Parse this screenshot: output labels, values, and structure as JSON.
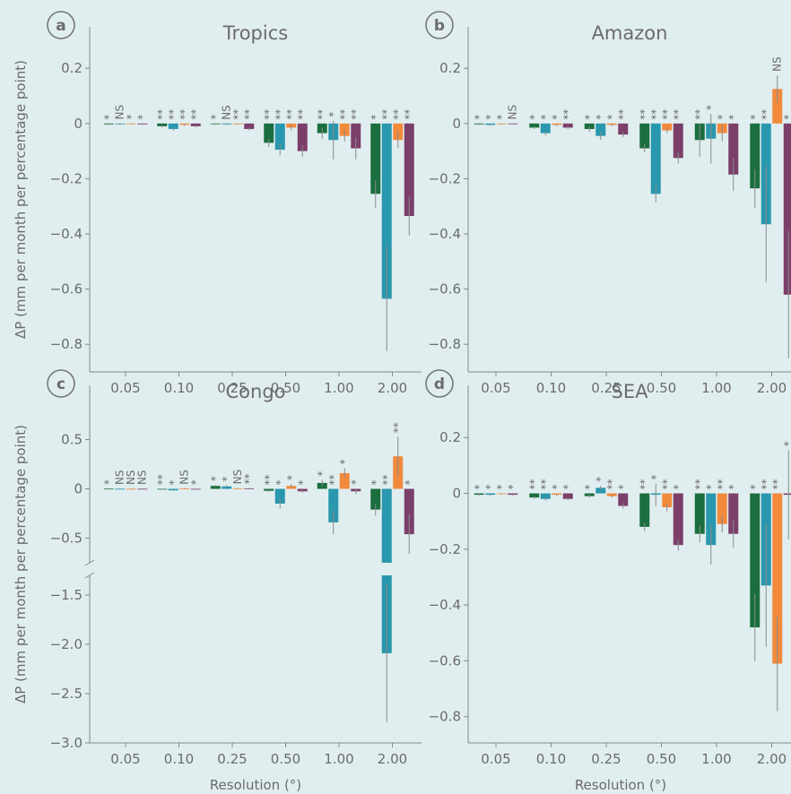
{
  "chart_data": [
    {
      "type": "bar",
      "panel_label": "a",
      "title": "Tropics",
      "ylabel": "ΔP (mm per month per percentage point)",
      "categories": [
        "0.05",
        "0.10",
        "0.25",
        "0.50",
        "1.00",
        "2.00"
      ],
      "ylim": [
        -0.9,
        0.35
      ],
      "yticks": [
        {
          "value": -0.8,
          "label": "−0.8"
        },
        {
          "value": -0.6,
          "label": "−0.6"
        },
        {
          "value": -0.4,
          "label": "−0.4"
        },
        {
          "value": -0.2,
          "label": "−0.2"
        },
        0,
        0.2
      ],
      "series": [
        {
          "color": "#1b6e3e",
          "values": [
            -0.003,
            -0.01,
            -0.002,
            -0.07,
            -0.035,
            -0.255
          ],
          "errors": [
            0.003,
            0.005,
            0.003,
            0.015,
            0.02,
            0.05
          ],
          "significance": [
            "*",
            "**",
            "*",
            "**",
            "**",
            "*"
          ]
        },
        {
          "color": "#2997ad",
          "values": [
            -0.002,
            -0.02,
            -0.003,
            -0.095,
            -0.06,
            -0.635
          ],
          "errors": [
            0.003,
            0.006,
            0.003,
            0.02,
            0.07,
            0.19
          ],
          "significance": [
            "NS",
            "**",
            "NS",
            "**",
            "*",
            "**"
          ]
        },
        {
          "color": "#f28a3c",
          "values": [
            -0.001,
            -0.005,
            -0.002,
            -0.015,
            -0.045,
            -0.06
          ],
          "errors": [
            0.002,
            0.004,
            0.002,
            0.01,
            0.02,
            0.03
          ],
          "significance": [
            "*",
            "**",
            "**",
            "**",
            "**",
            "**"
          ]
        },
        {
          "color": "#7b3f6a",
          "values": [
            -0.003,
            -0.01,
            -0.02,
            -0.1,
            -0.09,
            -0.335
          ],
          "errors": [
            0.003,
            0.005,
            0.005,
            0.02,
            0.04,
            0.07
          ],
          "significance": [
            "*",
            "**",
            "**",
            "**",
            "**",
            "**"
          ]
        }
      ]
    },
    {
      "type": "bar",
      "panel_label": "b",
      "title": "Amazon",
      "categories": [
        "0.05",
        "0.10",
        "0.25",
        "0.50",
        "1.00",
        "2.00"
      ],
      "ylim": [
        -0.9,
        0.35
      ],
      "yticks": [
        {
          "value": -0.8,
          "label": "−0.8"
        },
        {
          "value": -0.6,
          "label": "−0.6"
        },
        {
          "value": -0.4,
          "label": "−0.4"
        },
        {
          "value": -0.2,
          "label": "−0.2"
        },
        0,
        0.2
      ],
      "series": [
        {
          "color": "#1b6e3e",
          "values": [
            -0.003,
            -0.015,
            -0.02,
            -0.09,
            -0.06,
            -0.235
          ],
          "errors": [
            0.003,
            0.005,
            0.01,
            0.015,
            0.06,
            0.07
          ],
          "significance": [
            "*",
            "*",
            "*",
            "**",
            "**",
            "*"
          ]
        },
        {
          "color": "#2997ad",
          "values": [
            -0.005,
            -0.035,
            -0.045,
            -0.255,
            -0.055,
            -0.365
          ],
          "errors": [
            0.003,
            0.008,
            0.015,
            0.03,
            0.09,
            0.21
          ],
          "significance": [
            "*",
            "*",
            "*",
            "**",
            "*",
            "**"
          ]
        },
        {
          "color": "#f28a3c",
          "values": [
            -0.002,
            -0.005,
            -0.005,
            -0.025,
            -0.035,
            0.125
          ],
          "errors": [
            0.002,
            0.004,
            0.005,
            0.01,
            0.03,
            0.05
          ],
          "significance": [
            "*",
            "*",
            "*",
            "**",
            "*",
            "NS"
          ]
        },
        {
          "color": "#7b3f6a",
          "values": [
            -0.001,
            -0.015,
            -0.04,
            -0.125,
            -0.185,
            -0.62
          ],
          "errors": [
            0.002,
            0.005,
            0.01,
            0.02,
            0.06,
            0.23
          ],
          "significance": [
            "NS",
            "**",
            "**",
            "**",
            "*",
            "*"
          ]
        }
      ]
    },
    {
      "type": "bar",
      "panel_label": "c",
      "title": "Congo",
      "ylabel": "ΔP (mm per month per percentage point)",
      "xlabel": "Resolution (°)",
      "categories": [
        "0.05",
        "0.10",
        "0.25",
        "0.50",
        "1.00",
        "2.00"
      ],
      "ylim": [
        -3.0,
        1.05
      ],
      "ybreak": [
        -1.3,
        -0.75
      ],
      "yticks": [
        {
          "value": -3.0,
          "label": "−3.0"
        },
        {
          "value": -2.5,
          "label": "−2.5"
        },
        {
          "value": -2.0,
          "label": "−2.0"
        },
        {
          "value": -1.5,
          "label": "−1.5"
        },
        {
          "value": -0.5,
          "label": "−0.5"
        },
        0,
        0.5
      ],
      "series": [
        {
          "color": "#1b6e3e",
          "values": [
            0.002,
            -0.003,
            0.03,
            -0.02,
            0.06,
            -0.21
          ],
          "errors": [
            0.003,
            0.005,
            0.01,
            0.01,
            0.03,
            0.06
          ],
          "significance": [
            "*",
            "**",
            "*",
            "**",
            "*",
            "*"
          ]
        },
        {
          "color": "#2997ad",
          "values": [
            0.001,
            -0.015,
            0.025,
            -0.15,
            -0.34,
            -2.09
          ],
          "errors": [
            0.003,
            0.005,
            0.01,
            0.05,
            0.12,
            0.7
          ],
          "significance": [
            "NS",
            "*",
            "*",
            "*",
            "**",
            "**"
          ]
        },
        {
          "color": "#f28a3c",
          "values": [
            0.001,
            0.003,
            0.005,
            0.03,
            0.16,
            0.33
          ],
          "errors": [
            0.003,
            0.004,
            0.005,
            0.02,
            0.05,
            0.2
          ],
          "significance": [
            "NS",
            "NS",
            "NS",
            "*",
            "*",
            "**"
          ]
        },
        {
          "color": "#7b3f6a",
          "values": [
            0.001,
            -0.002,
            0.005,
            -0.025,
            -0.025,
            -0.46
          ],
          "errors": [
            0.003,
            0.004,
            0.005,
            0.015,
            0.03,
            0.2
          ],
          "significance": [
            "NS",
            "*",
            "**",
            "*",
            "*",
            "*"
          ]
        }
      ]
    },
    {
      "type": "bar",
      "panel_label": "d",
      "title": "SEA",
      "xlabel": "Resolution (°)",
      "categories": [
        "0.05",
        "0.10",
        "0.25",
        "0.50",
        "1.00",
        "2.00"
      ],
      "ylim": [
        -0.894,
        0.387
      ],
      "yticks": [
        {
          "value": -0.8,
          "label": "−0.8"
        },
        {
          "value": -0.6,
          "label": "−0.6"
        },
        {
          "value": -0.4,
          "label": "−0.4"
        },
        {
          "value": -0.2,
          "label": "−0.2"
        },
        0,
        0.2
      ],
      "series": [
        {
          "color": "#1b6e3e",
          "values": [
            -0.005,
            -0.015,
            -0.01,
            -0.12,
            -0.145,
            -0.48
          ],
          "errors": [
            0.003,
            0.005,
            0.005,
            0.015,
            0.03,
            0.12
          ],
          "significance": [
            "*",
            "**",
            "*",
            "**",
            "**",
            "*"
          ]
        },
        {
          "color": "#2997ad",
          "values": [
            -0.005,
            -0.02,
            0.02,
            -0.005,
            -0.185,
            -0.33
          ],
          "errors": [
            0.003,
            0.006,
            0.008,
            0.04,
            0.07,
            0.22
          ],
          "significance": [
            "*",
            "**",
            "*",
            "*",
            "*",
            "**"
          ]
        },
        {
          "color": "#f28a3c",
          "values": [
            -0.002,
            -0.005,
            -0.01,
            -0.05,
            -0.11,
            -0.61
          ],
          "errors": [
            0.002,
            0.004,
            0.005,
            0.015,
            0.03,
            0.17
          ],
          "significance": [
            "*",
            "*",
            "**",
            "**",
            "**",
            "**"
          ]
        },
        {
          "color": "#7b3f6a",
          "values": [
            -0.005,
            -0.02,
            -0.045,
            -0.185,
            -0.145,
            -0.005
          ],
          "errors": [
            0.003,
            0.005,
            0.01,
            0.02,
            0.05,
            0.16
          ],
          "significance": [
            "*",
            "*",
            "*",
            "*",
            "*",
            "*"
          ]
        }
      ]
    }
  ]
}
